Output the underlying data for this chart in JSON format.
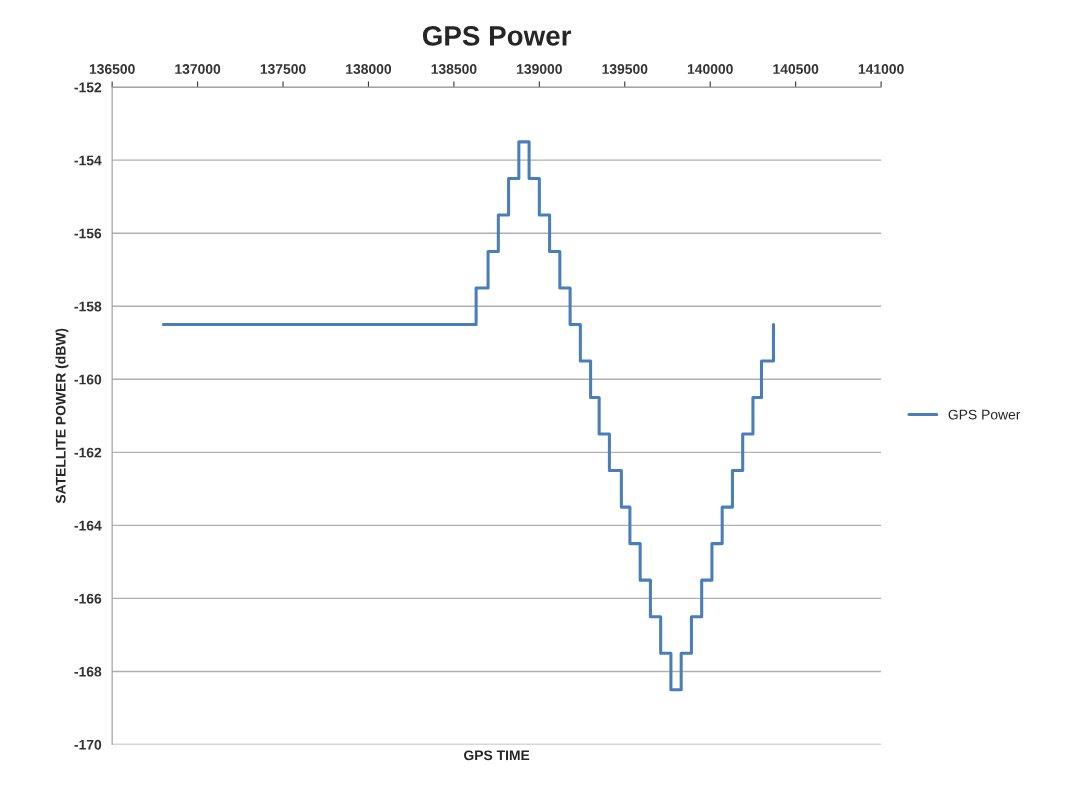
{
  "chart_data": {
    "type": "step",
    "title": "GPS Power",
    "xlabel": "GPS TIME",
    "ylabel": "SATELLITE POWER (dBW)",
    "xlim": [
      136500,
      141000
    ],
    "xticks": [
      136500,
      137000,
      137500,
      138000,
      138500,
      139000,
      139500,
      140000,
      140500,
      141000
    ],
    "ylim": [
      -170,
      -152
    ],
    "yticks": [
      -170,
      -168,
      -166,
      -164,
      -162,
      -160,
      -158,
      -156,
      -154,
      -152
    ],
    "grid": "y",
    "legend": "right",
    "line_style": "solid",
    "marker": "none",
    "series": [
      {
        "name": "GPS Power",
        "color": "#4a7ebb",
        "x": [
          136800,
          138630,
          138700,
          138760,
          138820,
          138880,
          138940,
          139000,
          139060,
          139120,
          139180,
          139240,
          139300,
          139350,
          139410,
          139480,
          139530,
          139590,
          139650,
          139710,
          139770,
          139830,
          139890,
          139950,
          140010,
          140070,
          140130,
          140190,
          140250,
          140300,
          140370
        ],
        "values": [
          -158.5,
          -157.5,
          -156.5,
          -155.5,
          -154.5,
          -153.5,
          -154.5,
          -155.5,
          -156.5,
          -157.5,
          -158.5,
          -159.5,
          -160.5,
          -161.5,
          -162.5,
          -163.5,
          -164.5,
          -165.5,
          -166.5,
          -167.5,
          -168.5,
          -167.5,
          -166.5,
          -165.5,
          -164.5,
          -163.5,
          -162.5,
          -161.5,
          -160.5,
          -159.5,
          -158.5
        ]
      }
    ]
  }
}
